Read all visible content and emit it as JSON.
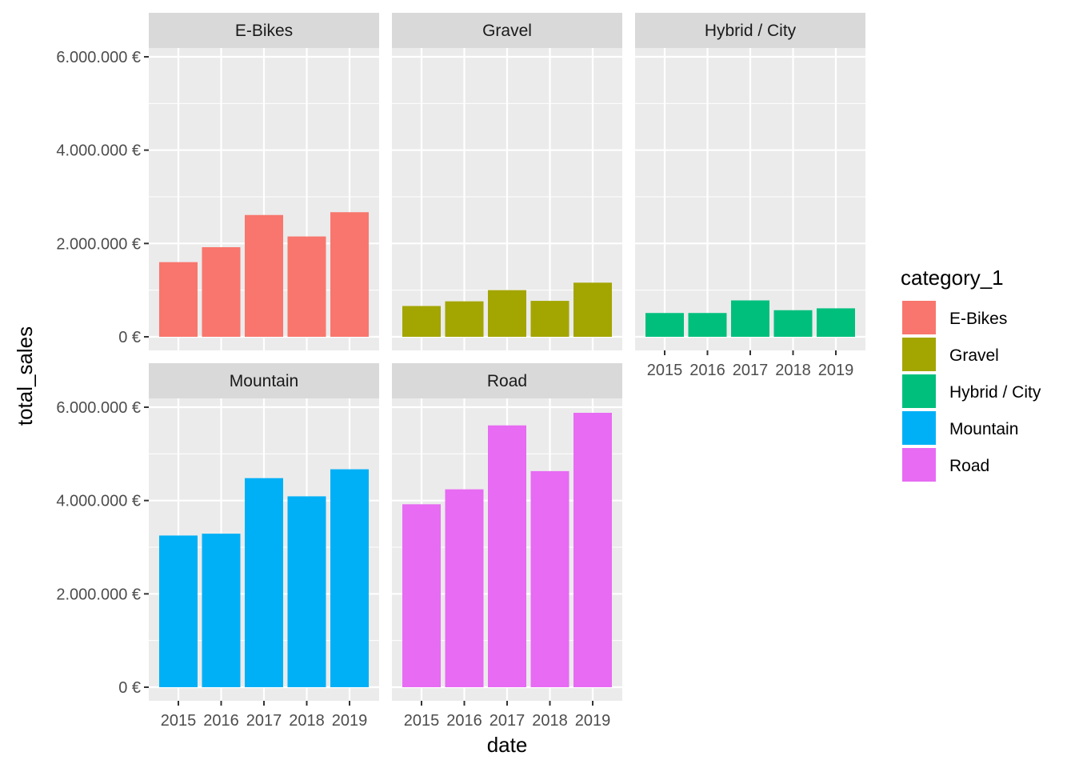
{
  "chart_data": {
    "type": "bar",
    "facet_by": "category_1",
    "xlabel": "date",
    "ylabel": "total_sales",
    "ylim": [
      0,
      6200000
    ],
    "y_ticks": [
      {
        "value": 0,
        "label": "0 €"
      },
      {
        "value": 2000000,
        "label": "2.000.000 €"
      },
      {
        "value": 4000000,
        "label": "4.000.000 €"
      },
      {
        "value": 6000000,
        "label": "6.000.000 €"
      }
    ],
    "categories": [
      "2015",
      "2016",
      "2017",
      "2018",
      "2019"
    ],
    "grid": true,
    "legend": {
      "title": "category_1",
      "position": "right",
      "items": [
        {
          "label": "E-Bikes",
          "color": "#F8766D"
        },
        {
          "label": "Gravel",
          "color": "#A3A500"
        },
        {
          "label": "Hybrid / City",
          "color": "#00BF7D"
        },
        {
          "label": "Mountain",
          "color": "#00B0F6"
        },
        {
          "label": "Road",
          "color": "#E76BF3"
        }
      ]
    },
    "facets": [
      {
        "name": "E-Bikes",
        "color": "#F8766D",
        "values": [
          1600000,
          1920000,
          2610000,
          2150000,
          2670000
        ]
      },
      {
        "name": "Gravel",
        "color": "#A3A500",
        "values": [
          660000,
          760000,
          1000000,
          770000,
          1160000
        ]
      },
      {
        "name": "Hybrid / City",
        "color": "#00BF7D",
        "values": [
          510000,
          510000,
          780000,
          570000,
          610000
        ]
      },
      {
        "name": "Mountain",
        "color": "#00B0F6",
        "values": [
          3250000,
          3290000,
          4480000,
          4090000,
          4670000
        ]
      },
      {
        "name": "Road",
        "color": "#E76BF3",
        "values": [
          3920000,
          4240000,
          5610000,
          4630000,
          5880000
        ]
      }
    ]
  }
}
